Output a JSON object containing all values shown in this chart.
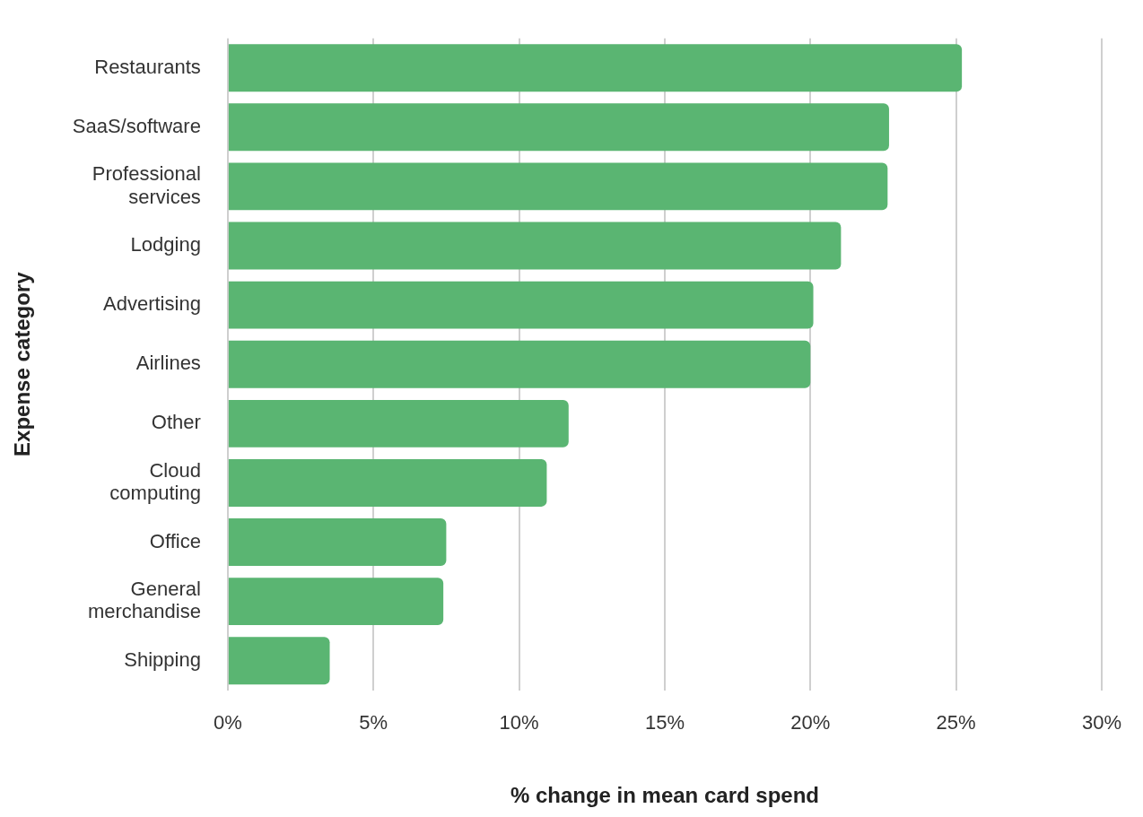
{
  "chart_data": {
    "type": "bar",
    "orientation": "horizontal",
    "xlabel": "% change in mean card spend",
    "ylabel": "Expense category",
    "categories": [
      "Restaurants",
      "SaaS/software",
      "Professional services",
      "Lodging",
      "Advertising",
      "Airlines",
      "Other",
      "Cloud computing",
      "Office",
      "General merchandise",
      "Shipping"
    ],
    "values": [
      25.2,
      22.7,
      22.65,
      21.05,
      20.1,
      20.0,
      11.7,
      10.95,
      7.5,
      7.4,
      3.5
    ],
    "color": "#5ab572",
    "xlim": [
      0,
      30
    ],
    "xticks": [
      {
        "value": 0,
        "label": "0%"
      },
      {
        "value": 5,
        "label": "5%"
      },
      {
        "value": 10,
        "label": "10%"
      },
      {
        "value": 15,
        "label": "15%"
      },
      {
        "value": 20,
        "label": "20%"
      },
      {
        "value": 25,
        "label": "25%"
      },
      {
        "value": 30,
        "label": "30%"
      }
    ],
    "grid": "x",
    "legend": false
  }
}
